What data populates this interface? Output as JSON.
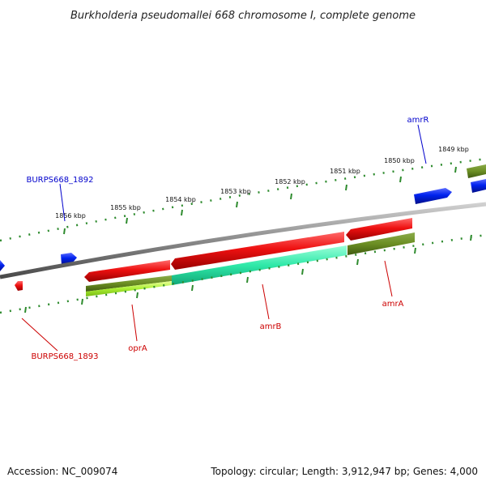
{
  "title": "Burkholderia pseudomallei 668 chromosome I, complete genome",
  "footer": {
    "accession": "Accession: NC_009074",
    "topology": "Topology: circular; Length: 3,912,947 bp; Genes: 4,000"
  },
  "colors": {
    "backbone": "#808080",
    "tick": "#2e8b2e",
    "forward_label": "#0000cc",
    "reverse_label": "#cc0000",
    "forward_gene": "#0022ee",
    "reverse_gene": "#ee1111",
    "teal_feature": "#2ee8a8",
    "olive_feature": "#6b8e23",
    "lime_feature": "#aaee33"
  },
  "ticks": [
    {
      "label": "1856 kbp"
    },
    {
      "label": "1855 kbp"
    },
    {
      "label": "1854 kbp"
    },
    {
      "label": "1853 kbp"
    },
    {
      "label": "1852 kbp"
    },
    {
      "label": "1851 kbp"
    },
    {
      "label": "1850 kbp"
    },
    {
      "label": "1849 kbp"
    }
  ],
  "gene_labels": {
    "burps668_1892": "BURPS668_1892",
    "amrR": "amrR",
    "burps668_1893": "BURPS668_1893",
    "oprA": "oprA",
    "amrB": "amrB",
    "amrA": "amrA"
  }
}
